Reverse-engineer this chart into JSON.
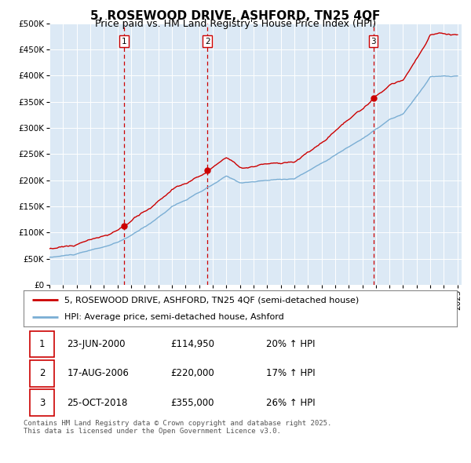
{
  "title": "5, ROSEWOOD DRIVE, ASHFORD, TN25 4QF",
  "subtitle": "Price paid vs. HM Land Registry's House Price Index (HPI)",
  "ylim": [
    0,
    500000
  ],
  "yticks": [
    0,
    50000,
    100000,
    150000,
    200000,
    250000,
    300000,
    350000,
    400000,
    450000,
    500000
  ],
  "ytick_labels": [
    "£0",
    "£50K",
    "£100K",
    "£150K",
    "£200K",
    "£250K",
    "£300K",
    "£350K",
    "£400K",
    "£450K",
    "£500K"
  ],
  "background_color": "#ffffff",
  "plot_bg_color": "#dce9f5",
  "grid_color": "#ffffff",
  "line1_color": "#cc0000",
  "line2_color": "#7aaed4",
  "vline_color": "#cc0000",
  "purchase_dates": [
    2000.47,
    2006.62,
    2018.81
  ],
  "purchase_prices": [
    114950,
    220000,
    355000
  ],
  "purchase_labels": [
    "1",
    "2",
    "3"
  ],
  "legend_line1": "5, ROSEWOOD DRIVE, ASHFORD, TN25 4QF (semi-detached house)",
  "legend_line2": "HPI: Average price, semi-detached house, Ashford",
  "table_data": [
    [
      "1",
      "23-JUN-2000",
      "£114,950",
      "20% ↑ HPI"
    ],
    [
      "2",
      "17-AUG-2006",
      "£220,000",
      "17% ↑ HPI"
    ],
    [
      "3",
      "25-OCT-2018",
      "£355,000",
      "26% ↑ HPI"
    ]
  ],
  "footnote": "Contains HM Land Registry data © Crown copyright and database right 2025.\nThis data is licensed under the Open Government Licence v3.0.",
  "title_fontsize": 11,
  "subtitle_fontsize": 9,
  "tick_fontsize": 7.5,
  "legend_fontsize": 8,
  "table_fontsize": 8.5,
  "footnote_fontsize": 6.5
}
